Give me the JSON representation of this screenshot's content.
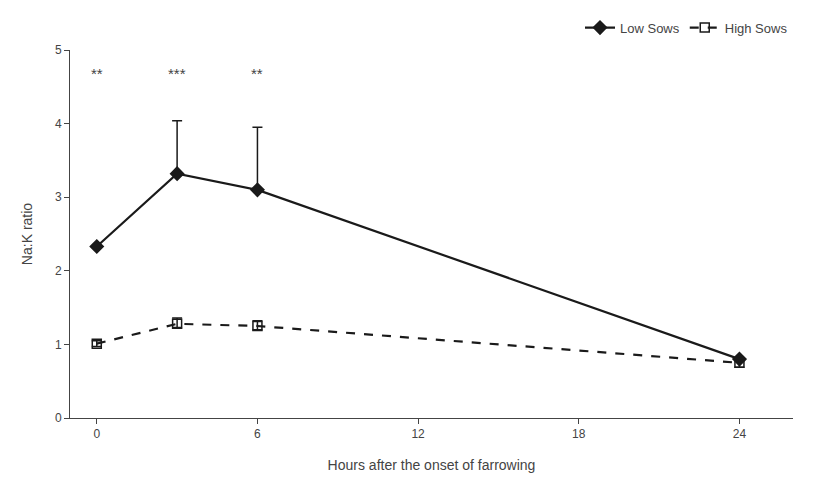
{
  "chart_data": {
    "type": "line",
    "x": [
      0,
      3,
      6,
      24
    ],
    "series": [
      {
        "name": "Low Sows",
        "color": "#1a1a1a",
        "marker": "diamond",
        "line_style": "solid",
        "values": [
          2.33,
          3.32,
          3.1,
          0.8
        ],
        "error_upper": [
          0,
          0.72,
          0.85,
          0
        ],
        "error_lower": [
          0,
          0,
          0,
          0
        ]
      },
      {
        "name": "High Sows",
        "color": "#1a1a1a",
        "marker": "square-open",
        "line_style": "dash",
        "values": [
          1.01,
          1.28,
          1.25,
          0.75
        ],
        "error_upper": [
          0.04,
          0.08,
          0.07,
          0.06
        ],
        "error_lower": [
          0.04,
          0.05,
          0.05,
          0.06
        ]
      }
    ],
    "xlabel": "Hours after the onset of farrowing",
    "ylabel": "Na:K ratio",
    "xlim": [
      -1.0,
      26.0
    ],
    "ylim": [
      0,
      5
    ],
    "xticks": [
      0,
      6,
      12,
      18,
      24
    ],
    "yticks": [
      0,
      1,
      2,
      3,
      4,
      5
    ],
    "annotations": [
      {
        "x": 0,
        "y": 4.82,
        "text": "**"
      },
      {
        "x": 3,
        "y": 4.82,
        "text": "***"
      },
      {
        "x": 6,
        "y": 4.82,
        "text": "**"
      }
    ],
    "legend": "upper right",
    "grid": false
  }
}
